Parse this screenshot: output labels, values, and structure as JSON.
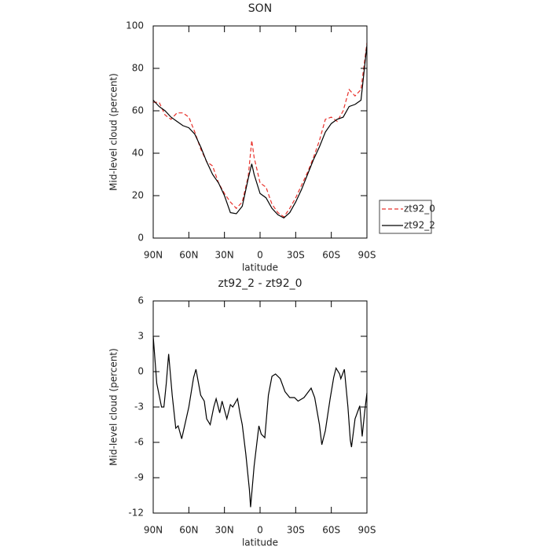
{
  "chart_data": [
    {
      "type": "line",
      "title": "SON",
      "xlabel": "latitude",
      "ylabel": "Mid-level cloud (percent)",
      "x": [
        90,
        85,
        80,
        75,
        70,
        65,
        60,
        55,
        50,
        45,
        40,
        35,
        30,
        25,
        20,
        15,
        10,
        7,
        5,
        0,
        -5,
        -10,
        -15,
        -20,
        -25,
        -30,
        -35,
        -40,
        -45,
        -50,
        -55,
        -60,
        -65,
        -70,
        -75,
        -80,
        -85,
        -90
      ],
      "series": [
        {
          "name": "zt92_0",
          "color": "#e8302a",
          "linestyle": "dashed",
          "values": [
            64,
            64,
            58,
            56,
            59,
            59,
            57,
            50,
            42,
            36,
            34,
            26,
            21,
            17,
            14,
            17,
            29,
            46,
            38,
            26,
            24,
            16,
            12,
            10,
            14,
            19,
            25,
            31,
            38,
            46,
            56,
            57,
            55,
            60,
            70,
            67,
            70,
            92
          ]
        },
        {
          "name": "zt92_2",
          "color": "#000000",
          "linestyle": "solid",
          "values": [
            65,
            62,
            60,
            57,
            55,
            53,
            52,
            49,
            43,
            36,
            30,
            26,
            20,
            12,
            11.5,
            15,
            28,
            35,
            30,
            21,
            19,
            14,
            11,
            9.5,
            12,
            17,
            23,
            30,
            37,
            43,
            50,
            54,
            56,
            57,
            62,
            63,
            65,
            91
          ]
        }
      ],
      "xlim": [
        90,
        -90
      ],
      "xticks": [
        {
          "value": 90,
          "label": "90N"
        },
        {
          "value": 60,
          "label": "60N"
        },
        {
          "value": 30,
          "label": "30N"
        },
        0,
        {
          "value": -30,
          "label": "30S"
        },
        {
          "value": -60,
          "label": "60S"
        },
        {
          "value": -90,
          "label": "90S"
        }
      ],
      "ylim": [
        0,
        100
      ],
      "yticks": [
        0,
        20,
        40,
        60,
        80,
        100
      ],
      "legend": "right"
    },
    {
      "type": "line",
      "title": "zt92_2 - zt92_0",
      "xlabel": "latitude",
      "ylabel": "Mid-level cloud (percent)",
      "x": [
        90,
        87,
        83,
        81,
        79,
        77,
        74,
        71,
        69,
        66,
        60,
        56,
        54,
        50,
        47,
        45,
        42,
        39,
        37,
        34,
        32,
        28,
        25,
        23,
        19,
        17,
        15,
        12,
        9,
        8,
        5,
        1,
        -1,
        -4,
        -7,
        -10,
        -13,
        -17,
        -21,
        -25,
        -29,
        -32,
        -37,
        -40,
        -43,
        -46,
        -50,
        -52,
        -55,
        -59,
        -62,
        -64,
        -67,
        -68,
        -71,
        -74,
        -76,
        -77,
        -80,
        -84,
        -86,
        -88,
        -90
      ],
      "values": [
        3,
        -1,
        -3,
        -3,
        -1,
        1.5,
        -2,
        -4.8,
        -4.6,
        -5.7,
        -3,
        -0.5,
        0.2,
        -2,
        -2.5,
        -4,
        -4.5,
        -3,
        -2.3,
        -3.5,
        -2.5,
        -4,
        -2.8,
        -3,
        -2.3,
        -3.5,
        -4.5,
        -7,
        -10,
        -11.5,
        -8,
        -4.6,
        -5.3,
        -5.6,
        -2,
        -0.4,
        -0.2,
        -0.6,
        -1.7,
        -2.2,
        -2.2,
        -2.5,
        -2.2,
        -1.8,
        -1.4,
        -2.2,
        -4.5,
        -6.2,
        -5,
        -2.3,
        -0.5,
        0.3,
        -0.2,
        -0.6,
        0.2,
        -3,
        -5.8,
        -6.4,
        -4,
        -2.9,
        -5.5,
        -3.5,
        -1.8
      ],
      "color": "#000000",
      "xlim": [
        90,
        -90
      ],
      "xticks": [
        {
          "value": 90,
          "label": "90N"
        },
        {
          "value": 60,
          "label": "60N"
        },
        {
          "value": 30,
          "label": "30N"
        },
        0,
        {
          "value": -30,
          "label": "30S"
        },
        {
          "value": -60,
          "label": "60S"
        },
        {
          "value": -90,
          "label": "90S"
        }
      ],
      "ylim": [
        -12,
        6
      ],
      "yticks": [
        -12,
        -9,
        -6,
        -3,
        0,
        3,
        6
      ]
    }
  ]
}
